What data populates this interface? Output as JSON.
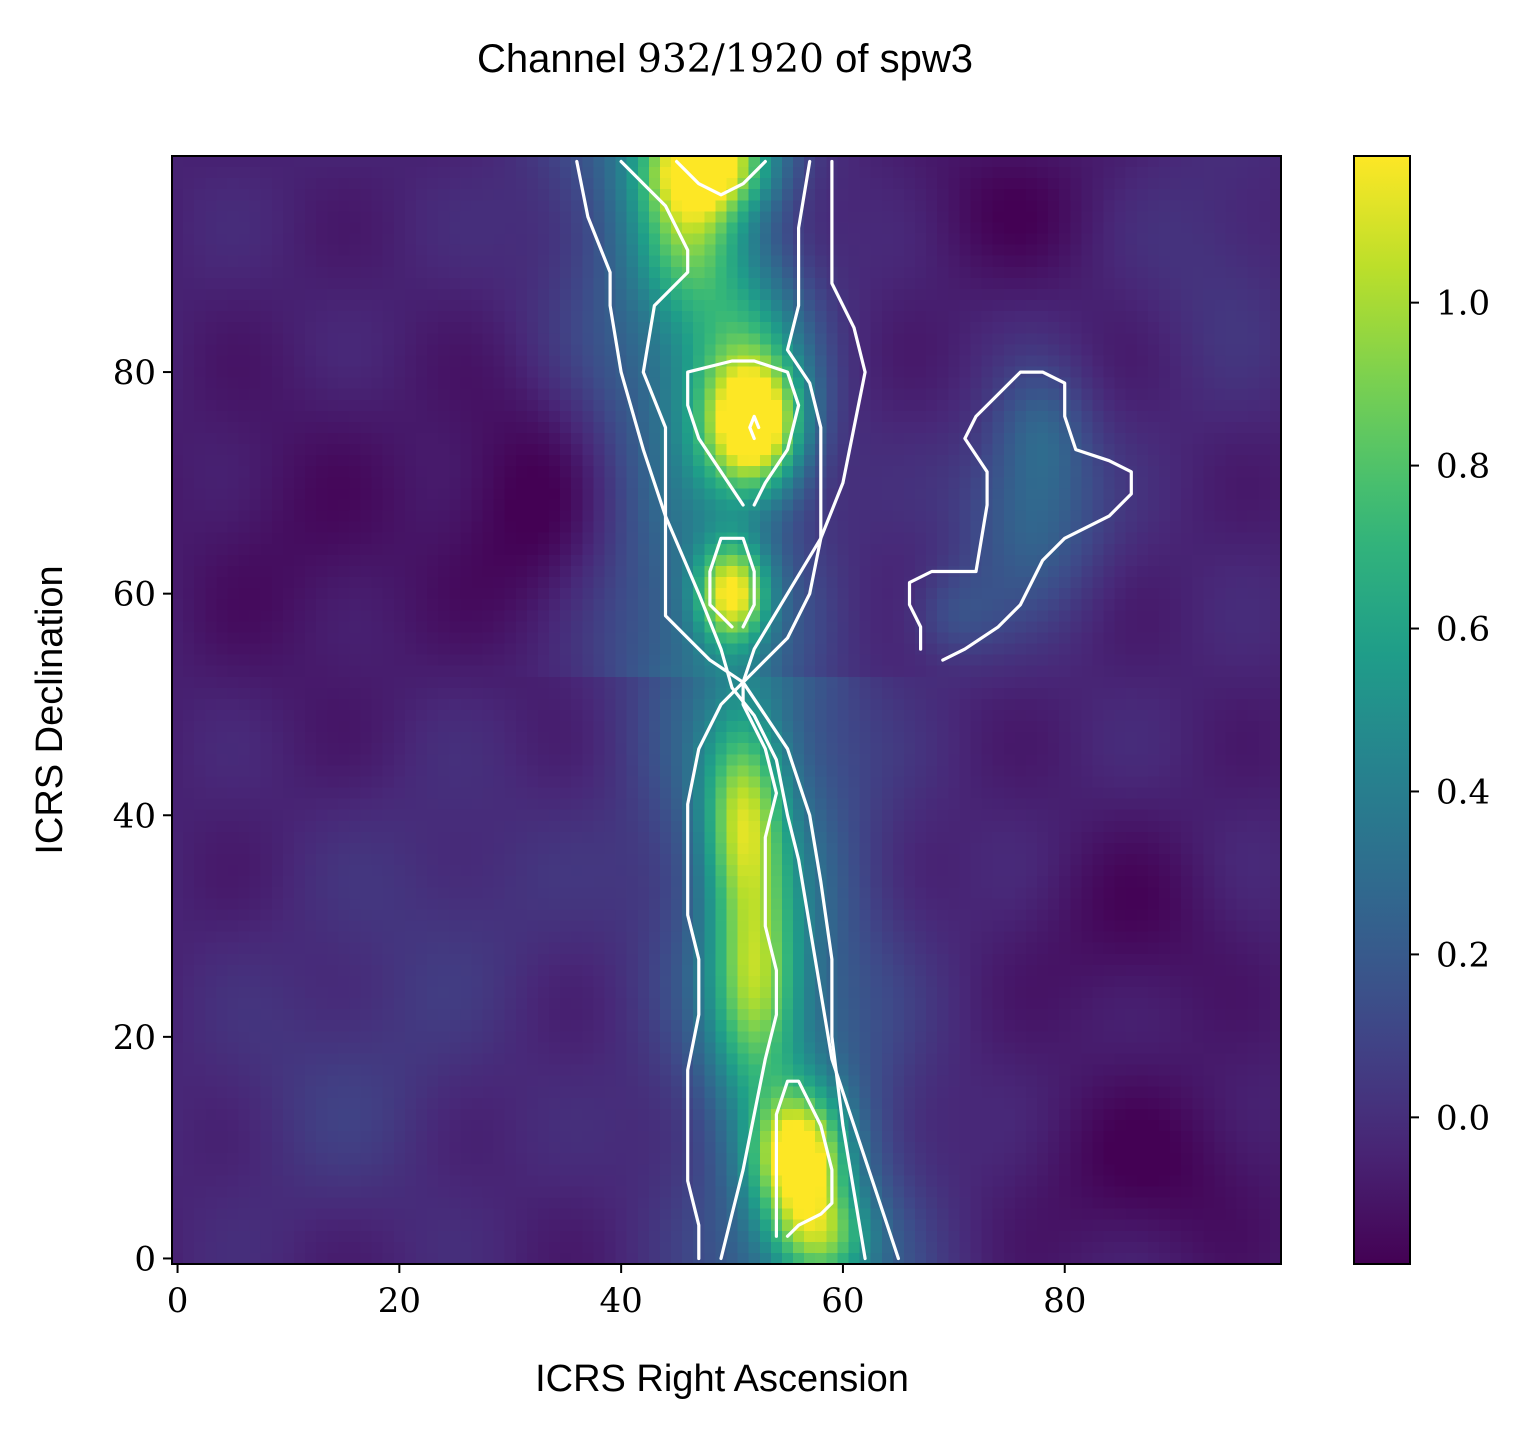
{
  "chart_data": {
    "type": "heatmap",
    "title_main": "Channel ",
    "title_math": "932/1920",
    "title_end": " of spw3",
    "xlabel": "ICRS Right Ascension",
    "ylabel": "ICRS Declination",
    "xlim": [
      -0.5,
      99.5
    ],
    "ylim": [
      -0.5,
      99.5
    ],
    "x_ticks": [
      0,
      20,
      40,
      60,
      80
    ],
    "y_ticks": [
      0,
      20,
      40,
      60,
      80
    ],
    "x_tick_labels": [
      "0",
      "20",
      "40",
      "60",
      "80"
    ],
    "y_tick_labels": [
      "0",
      "20",
      "40",
      "60",
      "80"
    ],
    "colormap": "viridis",
    "colorbar": {
      "range": [
        -0.18,
        1.18
      ],
      "ticks": [
        0.0,
        0.2,
        0.4,
        0.6,
        0.8,
        1.0
      ],
      "tick_labels": [
        "0.0",
        "0.2",
        "0.4",
        "0.6",
        "0.8",
        "1.0"
      ]
    },
    "contour_color": "#ffffff",
    "contours": [
      {
        "level": 0.3,
        "points": [
          [
            36,
            99
          ],
          [
            37,
            94
          ],
          [
            39,
            89
          ],
          [
            39,
            86
          ],
          [
            40,
            80
          ],
          [
            42,
            73
          ],
          [
            44,
            67
          ],
          [
            47,
            60
          ],
          [
            49,
            55
          ],
          [
            50,
            51.5
          ],
          [
            52,
            49
          ],
          [
            54,
            45
          ],
          [
            55,
            40
          ],
          [
            56,
            36
          ],
          [
            57,
            30
          ],
          [
            58,
            24
          ],
          [
            59,
            18
          ],
          [
            61,
            12
          ],
          [
            63,
            6
          ],
          [
            65,
            0
          ]
        ]
      },
      {
        "level": 0.3,
        "points": [
          [
            59,
            99
          ],
          [
            59,
            94
          ],
          [
            59,
            88
          ],
          [
            61,
            84
          ],
          [
            62,
            80
          ],
          [
            61,
            75
          ],
          [
            60,
            70
          ],
          [
            58,
            65
          ],
          [
            55,
            60
          ],
          [
            52,
            55
          ],
          [
            51,
            52
          ],
          [
            53,
            49
          ],
          [
            55,
            46
          ],
          [
            57,
            40
          ],
          [
            58,
            34
          ],
          [
            59,
            27
          ],
          [
            59,
            20
          ],
          [
            60,
            12
          ],
          [
            61,
            6
          ],
          [
            62,
            0
          ]
        ]
      },
      {
        "level": 0.3,
        "points": [
          [
            69,
            54
          ],
          [
            71,
            55
          ],
          [
            74,
            57
          ],
          [
            76,
            59
          ],
          [
            78,
            63
          ],
          [
            80,
            65
          ],
          [
            84,
            67
          ],
          [
            86,
            69
          ],
          [
            86,
            71
          ],
          [
            84,
            72
          ],
          [
            81,
            73
          ],
          [
            80,
            76
          ],
          [
            80,
            79
          ],
          [
            78,
            80
          ],
          [
            76,
            80
          ],
          [
            74,
            78
          ],
          [
            72,
            76
          ],
          [
            71,
            74
          ],
          [
            73,
            71
          ],
          [
            73,
            68
          ],
          [
            72,
            62
          ],
          [
            70,
            62
          ],
          [
            68,
            62
          ],
          [
            66,
            61
          ],
          [
            66,
            59
          ],
          [
            67,
            57
          ],
          [
            67,
            55
          ]
        ]
      },
      {
        "level": 0.6,
        "points": [
          [
            40,
            99
          ],
          [
            42,
            97
          ],
          [
            44,
            95
          ],
          [
            46,
            91
          ],
          [
            46,
            89
          ],
          [
            43,
            86
          ],
          [
            42,
            80
          ],
          [
            44,
            75
          ],
          [
            44,
            70
          ],
          [
            44,
            64
          ],
          [
            44,
            58
          ],
          [
            46,
            56
          ],
          [
            48,
            54
          ],
          [
            51,
            52
          ]
        ]
      },
      {
        "level": 0.6,
        "points": [
          [
            51,
            52
          ],
          [
            52,
            53
          ],
          [
            55,
            56
          ],
          [
            57,
            60
          ],
          [
            58,
            65
          ],
          [
            58,
            70
          ],
          [
            58,
            75
          ],
          [
            57,
            79
          ],
          [
            55,
            82
          ],
          [
            56,
            86
          ],
          [
            56,
            90
          ],
          [
            56,
            93
          ],
          [
            57,
            99
          ]
        ]
      },
      {
        "level": 0.6,
        "points": [
          [
            47,
            0
          ],
          [
            47,
            3
          ],
          [
            46,
            7
          ],
          [
            46,
            12
          ],
          [
            46,
            17
          ],
          [
            47,
            22
          ],
          [
            47,
            27
          ],
          [
            46,
            31
          ],
          [
            46,
            36
          ],
          [
            46,
            41
          ],
          [
            47,
            46
          ],
          [
            49,
            50
          ],
          [
            51,
            52
          ]
        ]
      },
      {
        "level": 0.6,
        "points": [
          [
            49,
            0
          ],
          [
            50,
            4
          ],
          [
            51,
            8
          ],
          [
            52,
            13
          ],
          [
            53,
            18
          ],
          [
            54,
            22
          ],
          [
            54,
            26
          ],
          [
            53,
            30
          ],
          [
            53,
            34
          ],
          [
            53,
            38
          ],
          [
            54,
            42
          ],
          [
            53,
            46
          ],
          [
            51,
            50
          ],
          [
            51,
            52
          ]
        ]
      },
      {
        "level": 0.9,
        "points": [
          [
            45,
            99
          ],
          [
            47,
            97
          ],
          [
            49,
            96
          ],
          [
            51,
            97
          ],
          [
            53,
            99
          ]
        ]
      },
      {
        "level": 0.9,
        "points": [
          [
            51,
            68
          ],
          [
            49,
            71
          ],
          [
            47,
            74
          ],
          [
            46,
            77
          ],
          [
            46,
            80
          ],
          [
            50,
            81
          ],
          [
            52,
            81
          ],
          [
            55,
            80
          ],
          [
            56,
            77
          ],
          [
            55,
            73
          ],
          [
            53,
            70
          ],
          [
            52,
            68
          ]
        ]
      },
      {
        "level": 0.9,
        "points": [
          [
            50,
            57
          ],
          [
            48,
            59
          ],
          [
            48,
            62
          ],
          [
            49,
            65
          ],
          [
            51,
            65
          ],
          [
            52,
            62
          ],
          [
            52,
            59
          ],
          [
            51,
            57
          ]
        ]
      },
      {
        "level": 0.9,
        "points": [
          [
            54,
            2
          ],
          [
            54,
            8
          ],
          [
            54,
            13
          ],
          [
            55,
            16
          ],
          [
            56,
            16
          ],
          [
            58,
            12
          ],
          [
            59,
            8
          ],
          [
            59,
            5
          ],
          [
            58,
            4
          ],
          [
            56,
            3
          ],
          [
            55,
            2
          ]
        ]
      },
      {
        "level": 1.1,
        "points": [
          [
            52,
            74
          ],
          [
            51.6,
            75
          ],
          [
            52,
            76
          ],
          [
            52.4,
            75
          ]
        ]
      }
    ],
    "blobs": [
      {
        "x": 48,
        "y": 99,
        "amp": 1.02,
        "sx": 3.8,
        "sy": 3.2
      },
      {
        "x": 46,
        "y": 93,
        "amp": 0.5,
        "sx": 3.2,
        "sy": 5
      },
      {
        "x": 51,
        "y": 82,
        "amp": 0.45,
        "sx": 4,
        "sy": 6
      },
      {
        "x": 52,
        "y": 75,
        "amp": 1.12,
        "sx": 3,
        "sy": 4
      },
      {
        "x": 50,
        "y": 60,
        "amp": 0.95,
        "sx": 2.2,
        "sy": 3.2
      },
      {
        "x": 51,
        "y": 40,
        "amp": 0.72,
        "sx": 2.5,
        "sy": 6
      },
      {
        "x": 52,
        "y": 25,
        "amp": 0.72,
        "sx": 2.8,
        "sy": 7
      },
      {
        "x": 56,
        "y": 9,
        "amp": 1.04,
        "sx": 2.8,
        "sy": 4
      },
      {
        "x": 58,
        "y": 2,
        "amp": 0.6,
        "sx": 3,
        "sy": 3
      },
      {
        "x": 77,
        "y": 67,
        "amp": 0.32,
        "sx": 4.5,
        "sy": 6
      },
      {
        "x": 78,
        "y": 75,
        "amp": 0.2,
        "sx": 3,
        "sy": 4
      },
      {
        "x": 70,
        "y": 58,
        "amp": 0.18,
        "sx": 3,
        "sy": 3
      },
      {
        "x": 33,
        "y": 68,
        "amp": -0.17,
        "sx": 6,
        "sy": 8
      },
      {
        "x": 11,
        "y": 65,
        "amp": -0.08,
        "sx": 8,
        "sy": 10
      },
      {
        "x": 15,
        "y": 15,
        "amp": 0.1,
        "sx": 8,
        "sy": 8
      },
      {
        "x": 25,
        "y": 32,
        "amp": 0.08,
        "sx": 8,
        "sy": 8
      },
      {
        "x": 88,
        "y": 8,
        "amp": -0.12,
        "sx": 8,
        "sy": 6
      },
      {
        "x": 86,
        "y": 30,
        "amp": -0.1,
        "sx": 6,
        "sy": 6
      },
      {
        "x": 75,
        "y": 95,
        "amp": -0.1,
        "sx": 6,
        "sy": 5
      },
      {
        "x": 94,
        "y": 90,
        "amp": 0.08,
        "sx": 5,
        "sy": 8
      }
    ]
  }
}
